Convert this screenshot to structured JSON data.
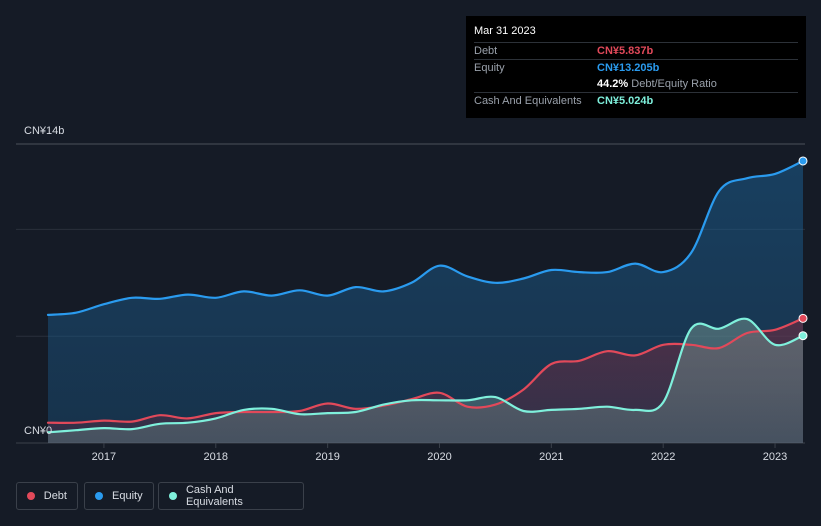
{
  "tooltip": {
    "date": "Mar 31 2023",
    "rows": [
      {
        "label": "Debt",
        "value": "CN¥5.837b",
        "color": "#e2495a"
      },
      {
        "label": "Equity",
        "value": "CN¥13.205b",
        "color": "#2a9bef"
      },
      {
        "label": "",
        "value": "44.2%",
        "extra": "Debt/Equity Ratio"
      },
      {
        "label": "Cash And Equivalents",
        "value": "CN¥5.024b",
        "color": "#7ff0dc"
      }
    ]
  },
  "axis": {
    "y_top_label": "CN¥14b",
    "y_bottom_label": "CN¥0",
    "x_ticks": [
      "2017",
      "2018",
      "2019",
      "2020",
      "2021",
      "2022",
      "2023"
    ]
  },
  "legend": [
    {
      "label": "Debt",
      "color": "#e2495a"
    },
    {
      "label": "Equity",
      "color": "#2a9bef"
    },
    {
      "label": "Cash And Equivalents",
      "color": "#7ff0dc"
    }
  ],
  "chart_data": {
    "type": "area",
    "ylim": [
      0,
      14
    ],
    "y_unit": "CN¥ billions",
    "x_range": [
      2016.5,
      2023.25
    ],
    "series": [
      {
        "name": "Equity",
        "color": "#2a9bef",
        "points": [
          [
            2016.5,
            6.0
          ],
          [
            2016.75,
            6.1
          ],
          [
            2017.0,
            6.5
          ],
          [
            2017.25,
            6.8
          ],
          [
            2017.5,
            6.75
          ],
          [
            2017.75,
            6.95
          ],
          [
            2018.0,
            6.8
          ],
          [
            2018.25,
            7.1
          ],
          [
            2018.5,
            6.9
          ],
          [
            2018.75,
            7.15
          ],
          [
            2019.0,
            6.9
          ],
          [
            2019.25,
            7.3
          ],
          [
            2019.5,
            7.1
          ],
          [
            2019.75,
            7.5
          ],
          [
            2020.0,
            8.3
          ],
          [
            2020.25,
            7.8
          ],
          [
            2020.5,
            7.5
          ],
          [
            2020.75,
            7.7
          ],
          [
            2021.0,
            8.1
          ],
          [
            2021.25,
            8.0
          ],
          [
            2021.5,
            8.0
          ],
          [
            2021.75,
            8.4
          ],
          [
            2022.0,
            8.0
          ],
          [
            2022.25,
            8.9
          ],
          [
            2022.5,
            11.8
          ],
          [
            2022.75,
            12.4
          ],
          [
            2023.0,
            12.6
          ],
          [
            2023.25,
            13.205
          ]
        ]
      },
      {
        "name": "Debt",
        "color": "#e2495a",
        "points": [
          [
            2016.5,
            0.95
          ],
          [
            2016.75,
            0.95
          ],
          [
            2017.0,
            1.05
          ],
          [
            2017.25,
            1.0
          ],
          [
            2017.5,
            1.3
          ],
          [
            2017.75,
            1.15
          ],
          [
            2018.0,
            1.4
          ],
          [
            2018.25,
            1.45
          ],
          [
            2018.5,
            1.45
          ],
          [
            2018.75,
            1.5
          ],
          [
            2019.0,
            1.85
          ],
          [
            2019.25,
            1.6
          ],
          [
            2019.5,
            1.75
          ],
          [
            2019.75,
            2.05
          ],
          [
            2020.0,
            2.35
          ],
          [
            2020.25,
            1.7
          ],
          [
            2020.5,
            1.8
          ],
          [
            2020.75,
            2.5
          ],
          [
            2021.0,
            3.7
          ],
          [
            2021.25,
            3.85
          ],
          [
            2021.5,
            4.3
          ],
          [
            2021.75,
            4.1
          ],
          [
            2022.0,
            4.6
          ],
          [
            2022.25,
            4.6
          ],
          [
            2022.5,
            4.45
          ],
          [
            2022.75,
            5.15
          ],
          [
            2023.0,
            5.3
          ],
          [
            2023.25,
            5.837
          ]
        ]
      },
      {
        "name": "Cash And Equivalents",
        "color": "#7ff0dc",
        "points": [
          [
            2016.5,
            0.5
          ],
          [
            2016.75,
            0.6
          ],
          [
            2017.0,
            0.7
          ],
          [
            2017.25,
            0.65
          ],
          [
            2017.5,
            0.9
          ],
          [
            2017.75,
            0.95
          ],
          [
            2018.0,
            1.15
          ],
          [
            2018.25,
            1.55
          ],
          [
            2018.5,
            1.6
          ],
          [
            2018.75,
            1.35
          ],
          [
            2019.0,
            1.4
          ],
          [
            2019.25,
            1.45
          ],
          [
            2019.5,
            1.8
          ],
          [
            2019.75,
            2.0
          ],
          [
            2020.0,
            2.0
          ],
          [
            2020.25,
            2.0
          ],
          [
            2020.5,
            2.15
          ],
          [
            2020.75,
            1.5
          ],
          [
            2021.0,
            1.55
          ],
          [
            2021.25,
            1.6
          ],
          [
            2021.5,
            1.7
          ],
          [
            2021.75,
            1.55
          ],
          [
            2022.0,
            1.9
          ],
          [
            2022.25,
            5.35
          ],
          [
            2022.5,
            5.35
          ],
          [
            2022.75,
            5.8
          ],
          [
            2023.0,
            4.6
          ],
          [
            2023.25,
            5.024
          ]
        ]
      }
    ]
  }
}
